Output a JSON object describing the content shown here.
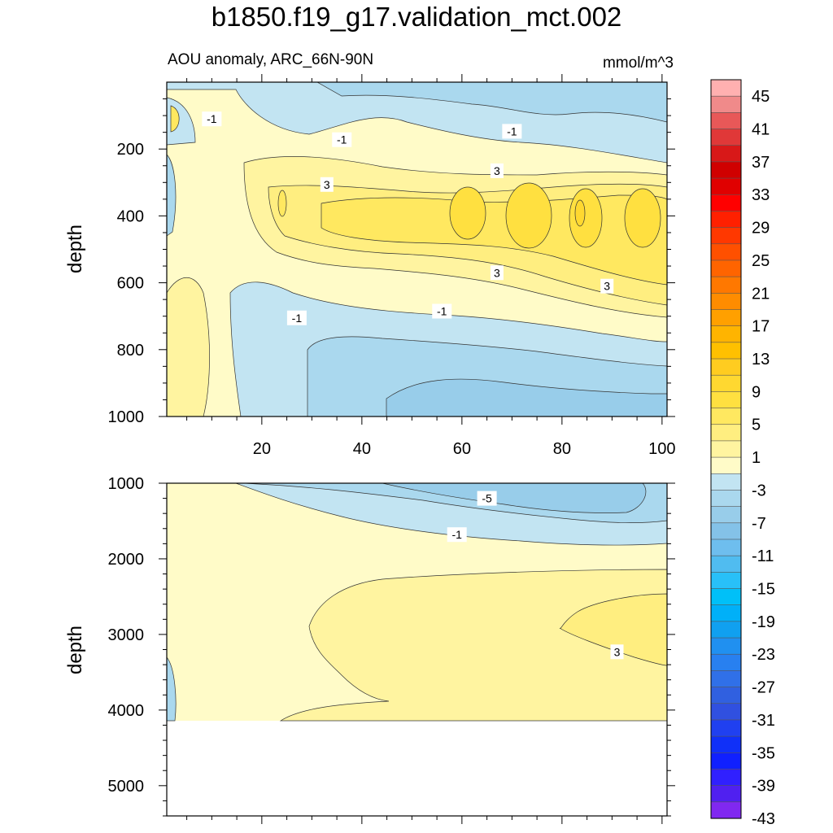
{
  "title": "b1850.f19_g17.validation_mct.002",
  "subtitle": "AOU anomaly, ARC_66N-90N",
  "units": "mmol/m^3",
  "chart_data": [
    {
      "type": "heatmap",
      "panel": "upper",
      "ylabel": "depth",
      "xlim": [
        1,
        101
      ],
      "ylim": [
        1000,
        0
      ],
      "x_ticks": [
        "20",
        "40",
        "60",
        "80",
        "100"
      ],
      "y_ticks": [
        "200",
        "400",
        "600",
        "800",
        "1000"
      ],
      "contour_labels": [
        {
          "text": "-1",
          "x": 10,
          "y": 110
        },
        {
          "text": "-1",
          "x": 36,
          "y": 172
        },
        {
          "text": "-1",
          "x": 70,
          "y": 147
        },
        {
          "text": "3",
          "x": 33,
          "y": 306
        },
        {
          "text": "3",
          "x": 67,
          "y": 265
        },
        {
          "text": "3",
          "x": 67,
          "y": 570
        },
        {
          "text": "3",
          "x": 89,
          "y": 610
        },
        {
          "text": "-1",
          "x": 27,
          "y": 705
        },
        {
          "text": "-1",
          "x": 56,
          "y": 685
        }
      ]
    },
    {
      "type": "heatmap",
      "panel": "lower",
      "ylabel": "depth",
      "xlim": [
        1,
        101
      ],
      "ylim": [
        5400,
        1000
      ],
      "y_ticks": [
        "1000",
        "2000",
        "3000",
        "4000",
        "5000"
      ],
      "contour_labels": [
        {
          "text": "-5",
          "x": 65,
          "y": 1200
        },
        {
          "text": "-1",
          "x": 59,
          "y": 1680
        },
        {
          "text": "3",
          "x": 91,
          "y": 3230
        }
      ]
    }
  ],
  "colorbar": {
    "labels": [
      "45",
      "41",
      "37",
      "33",
      "29",
      "25",
      "21",
      "17",
      "13",
      "9",
      "5",
      "1",
      "-3",
      "-7",
      "-11",
      "-15",
      "-19",
      "-23",
      "-27",
      "-31",
      "-35",
      "-39",
      "-43"
    ],
    "colors": [
      "#ffb0b0",
      "#f08a8a",
      "#e85858",
      "#e03838",
      "#d81818",
      "#d00000",
      "#e00000",
      "#ff0000",
      "#ff2000",
      "#ff3800",
      "#ff5000",
      "#ff6400",
      "#ff7800",
      "#ff8c00",
      "#ffa000",
      "#ffb400",
      "#ffc000",
      "#ffcc20",
      "#ffd830",
      "#ffe040",
      "#ffe860",
      "#ffee80",
      "#fff4a0",
      "#fffbc8",
      "#c2e4f2",
      "#aad8ee",
      "#98cdea",
      "#84c2e8",
      "#6ebeee",
      "#50bcf0",
      "#28c0f8",
      "#00c0f8",
      "#00b0f8",
      "#10a0f0",
      "#2090f0",
      "#2880f0",
      "#3070e8",
      "#3060e0",
      "#3050e0",
      "#2040f0",
      "#1030f8",
      "#1020ff",
      "#3020ff",
      "#5020f0",
      "#8028f0"
    ]
  }
}
